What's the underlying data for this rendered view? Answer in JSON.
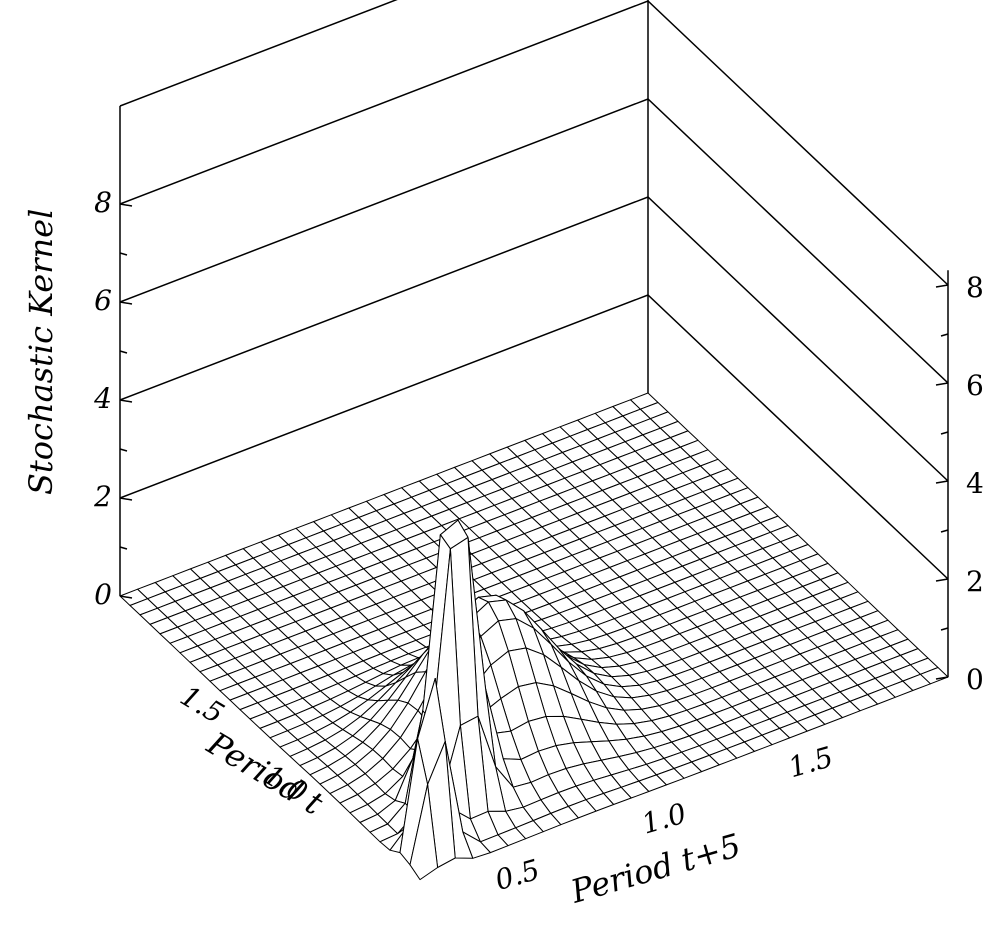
{
  "chart_data": {
    "type": "surface3d",
    "title": "",
    "zlabel": "Stochastic Kernel",
    "xlabel": "Period t+5",
    "ylabel": "Period t",
    "x_ticks": [
      "0.5",
      "1.0",
      "1.5"
    ],
    "y_ticks": [
      "1.0",
      "1.5"
    ],
    "z_ticks_left": [
      "0",
      "2",
      "4",
      "6",
      "8"
    ],
    "z_ticks_right": [
      "0",
      "2",
      "4",
      "6",
      "8"
    ],
    "xlim": [
      0.2,
      2.0
    ],
    "ylim": [
      0.2,
      2.0
    ],
    "zlim": [
      0,
      8
    ],
    "grid": "back-walls",
    "peaks": [
      {
        "x": 0.3,
        "y": 0.3,
        "z": 4.4,
        "width": 0.04
      },
      {
        "x": 0.47,
        "y": 0.47,
        "z": 6.8,
        "width": 0.06
      },
      {
        "x": 0.75,
        "y": 0.75,
        "z": 2.7,
        "width": 0.18
      }
    ],
    "colors": {
      "line": "#000000",
      "background": "#ffffff"
    }
  }
}
